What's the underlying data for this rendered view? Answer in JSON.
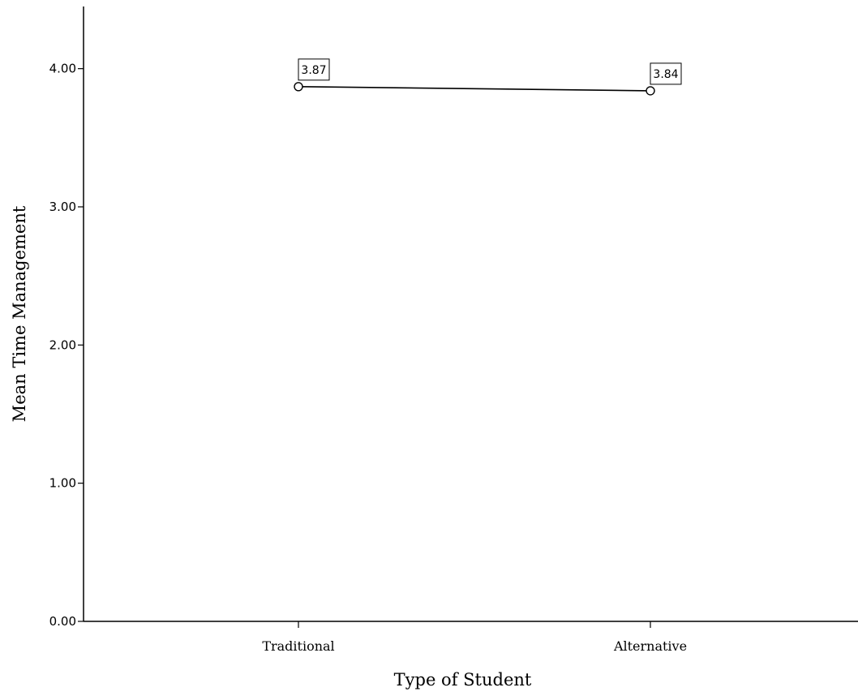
{
  "chart_data": {
    "type": "line",
    "categories": [
      "Traditional",
      "Alternative"
    ],
    "series": [
      {
        "values": [
          3.87,
          3.84
        ]
      }
    ],
    "data_labels": [
      "3.87",
      "3.84"
    ],
    "xlabel": "Type of Student",
    "ylabel": "Mean Time Management",
    "ylim": [
      0,
      4.45
    ],
    "yticks": [
      0,
      1,
      2,
      3,
      4
    ],
    "ytick_labels": [
      "0.00",
      "1.00",
      "2.00",
      "3.00",
      "4.00"
    ],
    "grid": false,
    "legend": "none",
    "marker": "open-circle",
    "colors": {
      "line": "#000000",
      "axis": "#000000",
      "background": "#ffffff"
    }
  }
}
